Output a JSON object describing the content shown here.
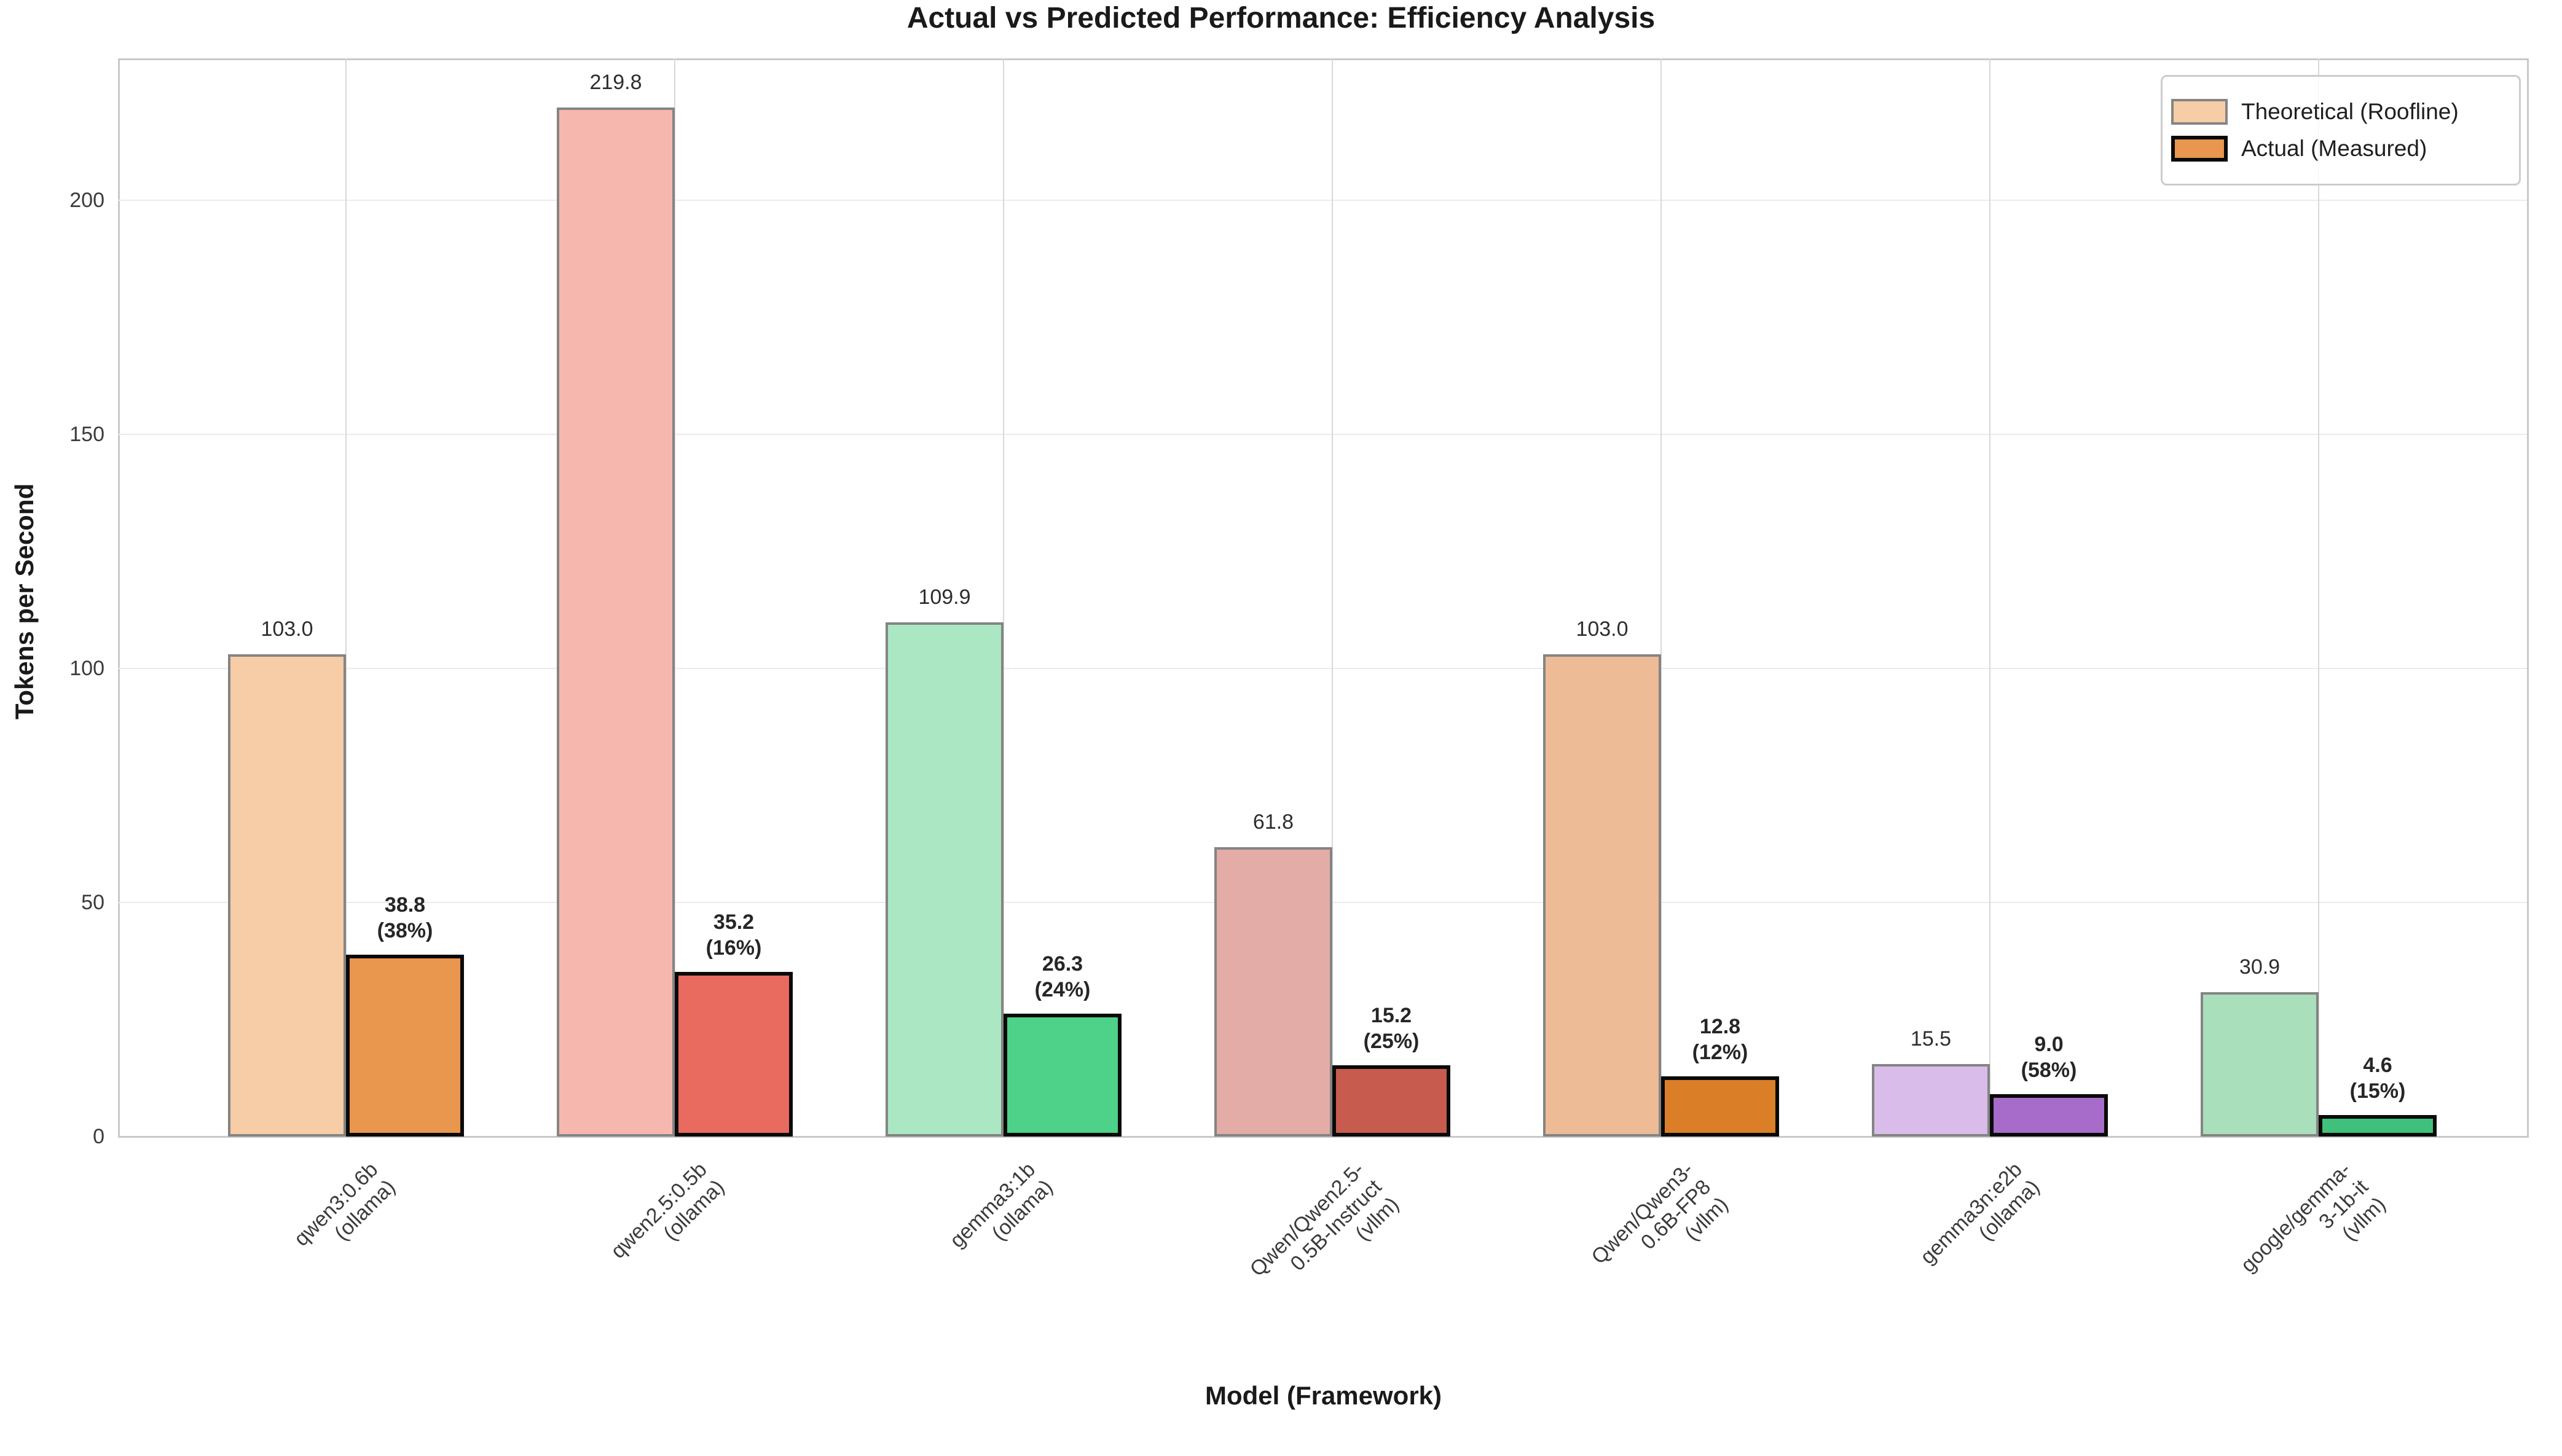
{
  "title": "Actual vs Predicted Performance: Efficiency Analysis",
  "x_axis": {
    "label": "Model (Framework)",
    "tick_rotation_deg": 45
  },
  "y_axis": {
    "label": "Tokens per Second",
    "ticks": [
      0,
      50,
      100,
      150,
      200
    ],
    "max": 230
  },
  "legend": {
    "items": [
      {
        "label": "Theoretical (Roofline)",
        "fill": "#f6cda6",
        "border": "#848484"
      },
      {
        "label": "Actual (Measured)",
        "fill": "#e9964e",
        "border": "#0a0a0a"
      }
    ]
  },
  "chart_data": {
    "type": "bar",
    "title": "Actual vs Predicted Performance: Efficiency Analysis",
    "xlabel": "Model (Framework)",
    "ylabel": "Tokens per Second",
    "ylim": [
      0,
      230
    ],
    "grid": "on",
    "legend_position": "upper right",
    "categories": [
      "qwen3:0.6b\n(ollama)",
      "qwen2.5:0.5b\n(ollama)",
      "gemma3:1b\n(ollama)",
      "Qwen/Qwen2.5-0.5B-Instruct\n(vllm)",
      "Qwen/Qwen3-0.6B-FP8\n(vllm)",
      "gemma3n:e2b\n(ollama)",
      "google/gemma-3-1b-it\n(vllm)"
    ],
    "series": [
      {
        "name": "Theoretical (Roofline)",
        "values": [
          103.0,
          219.8,
          109.9,
          61.8,
          103.0,
          15.5,
          30.9
        ]
      },
      {
        "name": "Actual (Measured)",
        "values": [
          38.8,
          35.2,
          26.3,
          15.2,
          12.8,
          9.0,
          4.6
        ]
      }
    ],
    "groups": [
      {
        "model": "qwen3:0.6b",
        "framework": "ollama",
        "theoretical": "103.0",
        "actual": "38.8",
        "efficiency": "(38%)",
        "theo_color": "#f6cda6",
        "actual_color": "#e9964e"
      },
      {
        "model": "qwen2.5:0.5b",
        "framework": "ollama",
        "theoretical": "219.8",
        "actual": "35.2",
        "efficiency": "(16%)",
        "theo_color": "#f6b7af",
        "actual_color": "#e96a5f"
      },
      {
        "model": "gemma3:1b",
        "framework": "ollama",
        "theoretical": "109.9",
        "actual": "26.3",
        "efficiency": "(24%)",
        "theo_color": "#abe7c3",
        "actual_color": "#4ed189"
      },
      {
        "model": "Qwen/Qwen2.5-0.5B-Instruct",
        "framework": "vllm",
        "theoretical": "61.8",
        "actual": "15.2",
        "efficiency": "(25%)",
        "theo_color": "#e3aca6",
        "actual_color": "#c75c4e"
      },
      {
        "model": "Qwen/Qwen3-0.6B-FP8",
        "framework": "vllm",
        "theoretical": "103.0",
        "actual": "12.8",
        "efficiency": "(12%)",
        "theo_color": "#edbb96",
        "actual_color": "#da7f28"
      },
      {
        "model": "gemma3n:e2b",
        "framework": "ollama",
        "theoretical": "15.5",
        "actual": "9.0",
        "efficiency": "(58%)",
        "theo_color": "#d9bce9",
        "actual_color": "#a76cc9"
      },
      {
        "model": "google/gemma-3-1b-it",
        "framework": "vllm",
        "theoretical": "30.9",
        "actual": "4.6",
        "efficiency": "(15%)",
        "theo_color": "#a9dfba",
        "actual_color": "#40c17b"
      }
    ]
  }
}
